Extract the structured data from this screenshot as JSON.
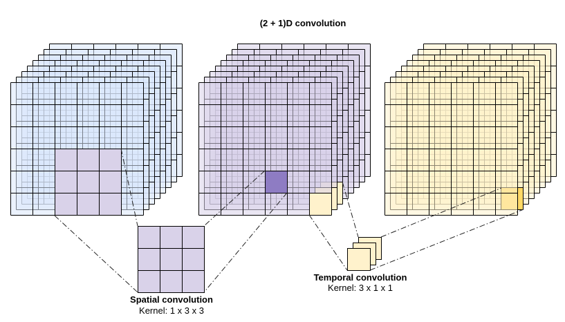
{
  "title": "(2 + 1)D convolution",
  "spatial": {
    "label": "Spatial convolution",
    "kernel": "Kernel: 1 x 3 x 3"
  },
  "temporal": {
    "label": "Temporal convolution",
    "kernel": "Kernel: 3 x 1 x 1"
  },
  "colors": {
    "input_volume": "#dae8fc",
    "intermediate_volume": "#d9d2e9",
    "output_volume": "#fff2cc",
    "spatial_kernel": "#d9d2e9",
    "spatial_output_cell": "#8e7cc3",
    "temporal_kernel": "#fff2cc",
    "temporal_output_cell": "#ffd966"
  }
}
